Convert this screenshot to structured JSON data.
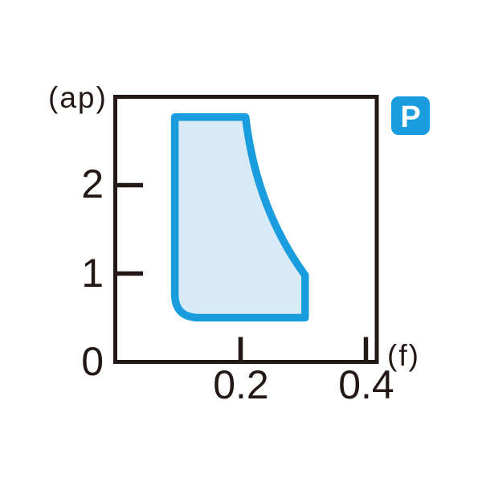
{
  "figure": {
    "kind": "recommended-cutting-range-figure",
    "badge": "P"
  },
  "chart_data": {
    "type": "area",
    "title": "",
    "x_axis": {
      "label": "(f)",
      "min": 0,
      "max": 0.42,
      "ticks": [
        0.2,
        0.4
      ],
      "tick_labels": [
        "0.2",
        "0.4"
      ],
      "origin_label": "0"
    },
    "y_axis": {
      "label": "(ap)",
      "min": 0,
      "max": 3.0,
      "ticks": [
        1,
        2
      ],
      "tick_labels": [
        "1",
        "2"
      ]
    },
    "badge": "P",
    "series": [
      {
        "name": "recommended-cutting-range",
        "f_range": [
          0.095,
          0.303
        ],
        "ap_range": [
          0.5,
          2.77
        ],
        "outline": [
          {
            "cmd": "M",
            "f": 0.095,
            "ap": 2.77
          },
          {
            "cmd": "L",
            "f": 0.208,
            "ap": 2.77
          },
          {
            "cmd": "Q",
            "cf": 0.225,
            "cap": 1.74,
            "f": 0.303,
            "ap": 0.98
          },
          {
            "cmd": "L",
            "f": 0.303,
            "ap": 0.5
          },
          {
            "cmd": "L",
            "f": 0.134,
            "ap": 0.5
          },
          {
            "cmd": "Q",
            "cf": 0.095,
            "cap": 0.5,
            "f": 0.095,
            "ap": 0.77
          },
          {
            "cmd": "Z"
          }
        ]
      }
    ],
    "layout_hints": {
      "grid": false,
      "legend": false,
      "x_ticks_inside_bottom": true,
      "y_ticks_inside_left": true
    },
    "colors": {
      "region_fill": "#d9eaf7",
      "region_stroke": "#1a9dde",
      "badge_fill": "#1a9dde",
      "badge_text": "#ffffff",
      "axis": "#231815"
    }
  }
}
